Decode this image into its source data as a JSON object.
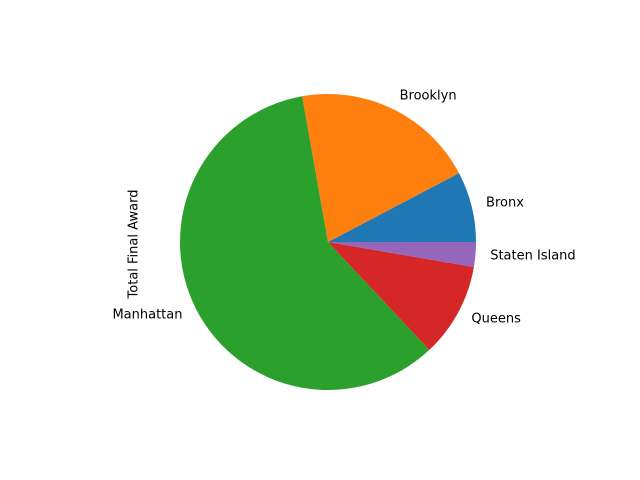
{
  "chart_data": {
    "type": "pie",
    "ylabel": "Total Final Award",
    "xlabel": "",
    "title": "",
    "start_angle_deg": 0,
    "direction": "counterclockwise",
    "slices": [
      {
        "label": "Bronx",
        "value": 7.7,
        "color": "#1f77b4"
      },
      {
        "label": "Brooklyn",
        "value": 20.1,
        "color": "#ff7f0e"
      },
      {
        "label": "Manhattan",
        "value": 59.2,
        "color": "#2ca02c"
      },
      {
        "label": "Queens",
        "value": 10.3,
        "color": "#d62728"
      },
      {
        "label": "Staten Island",
        "value": 2.7,
        "color": "#9467bd"
      }
    ]
  }
}
